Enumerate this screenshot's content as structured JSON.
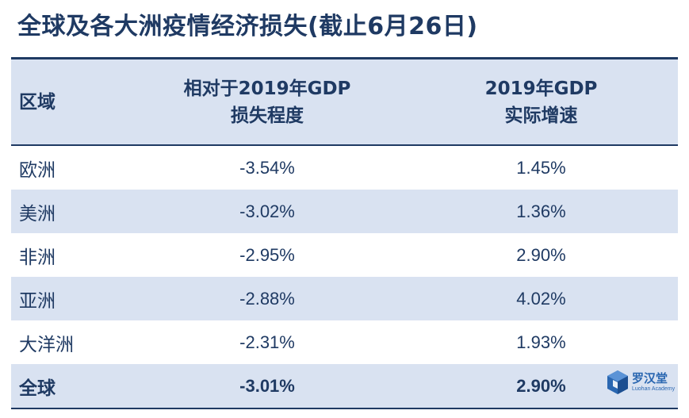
{
  "title": "全球及各大洲疫情经济损失(截止6月26日)",
  "table": {
    "headers": {
      "region": "区域",
      "loss_line1": "相对于2019年GDP",
      "loss_line2": "损失程度",
      "growth_line1": "2019年GDP",
      "growth_line2": "实际增速"
    },
    "rows": [
      {
        "region": "欧洲",
        "loss": "-3.54%",
        "growth": "1.45%"
      },
      {
        "region": "美洲",
        "loss": "-3.02%",
        "growth": "1.36%"
      },
      {
        "region": "非洲",
        "loss": "-2.95%",
        "growth": "2.90%"
      },
      {
        "region": "亚洲",
        "loss": "-2.88%",
        "growth": "4.02%"
      },
      {
        "region": "大洋洲",
        "loss": "-2.31%",
        "growth": "1.93%"
      }
    ],
    "total": {
      "region": "全球",
      "loss": "-3.01%",
      "growth": "2.90%"
    }
  },
  "logo": {
    "name": "罗汉堂",
    "subtitle": "Luohan Academy",
    "icon": "luohan-cube-icon"
  },
  "colors": {
    "text": "#1f3a63",
    "header_bg": "#d9e2f1",
    "stripe_bg": "#d9e2f1",
    "logo": "#2a67b1"
  }
}
